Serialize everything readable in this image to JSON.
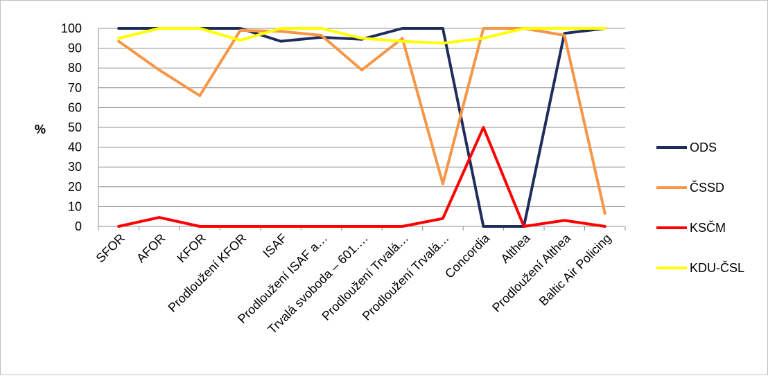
{
  "chart_data": {
    "type": "line",
    "title": "",
    "xlabel": "",
    "ylabel": "%",
    "ylim": [
      0,
      100
    ],
    "yticks": [
      0,
      10,
      20,
      30,
      40,
      50,
      60,
      70,
      80,
      90,
      100
    ],
    "grid": true,
    "legend_position": "right",
    "categories": [
      "SFOR",
      "AFOR",
      "KFOR",
      "Prodloužení KFOR",
      "ISAF",
      "Prodloužení ISAF a…",
      "Trvalá svoboda – 601.…",
      "Prodloužení Trvalá…",
      "Prodloužení Trvalá…",
      "Concordia",
      "Althea",
      "Prodloužení Althea",
      "Baltic Air Policing"
    ],
    "series": [
      {
        "name": "ODS",
        "color": "#1f2d5c",
        "values": [
          100,
          100,
          100,
          100,
          93.5,
          95.5,
          94.5,
          100,
          100,
          0,
          0,
          97.5,
          100
        ]
      },
      {
        "name": "ČSSD",
        "color": "#f79646",
        "values": [
          93.5,
          79,
          66,
          99,
          98.5,
          96.5,
          79,
          95,
          21.5,
          100,
          100,
          96.5,
          6.5
        ]
      },
      {
        "name": "KSČM",
        "color": "#ff0000",
        "values": [
          0,
          4.5,
          0,
          0,
          0,
          0,
          0,
          0,
          4,
          50,
          0,
          3,
          0
        ]
      },
      {
        "name": "KDU-ČSL",
        "color": "#ffff00",
        "values": [
          95,
          100,
          100,
          94,
          100,
          100,
          95,
          93.5,
          92.5,
          95,
          100,
          100,
          100
        ]
      }
    ]
  }
}
